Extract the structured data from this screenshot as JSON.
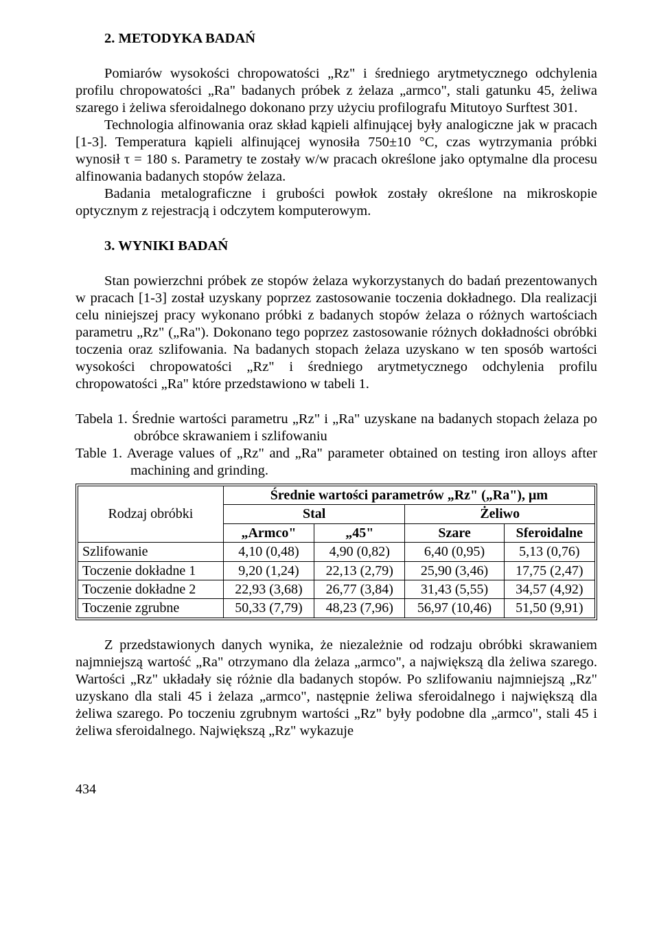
{
  "section2": {
    "title": "2.  METODYKA  BADAŃ",
    "p1": "Pomiarów wysokości chropowatości „Rz\" i średniego arytmetycznego odchylenia profilu chropowatości „Ra\" badanych próbek z żelaza „armco\", stali gatunku 45, żeliwa szarego i żeliwa sferoidalnego dokonano przy użyciu profilografu Mitutoyo Surftest 301.",
    "p2": "Technologia alfinowania oraz skład kąpieli alfinującej były analogiczne jak w pracach [1-3]. Temperatura kąpieli alfinującej wynosiła 750±10 °C, czas wytrzymania próbki wynosił τ = 180 s. Parametry te zostały w/w pracach określone jako optymalne dla procesu alfinowania badanych stopów żelaza.",
    "p3": "Badania metalograficzne i grubości powłok zostały określone na mikroskopie optycznym z rejestracją i odczytem komputerowym."
  },
  "section3": {
    "title": "3.   WYNIKI  BADAŃ",
    "p1": "Stan powierzchni próbek ze stopów żelaza  wykorzystanych do badań prezentowanych w pracach [1-3] został uzyskany poprzez zastosowanie toczenia dokładnego. Dla realizacji celu niniejszej pracy wykonano próbki z badanych stopów żelaza o różnych wartościach parametru „Rz\" („Ra\"). Dokonano tego poprzez zastosowanie różnych dokładności obróbki toczenia oraz szlifowania. Na badanych stopach żelaza uzyskano w ten sposób wartości wysokości chropowatości „Rz\" i średniego arytmetycznego odchylenia profilu chropowatości „Ra\" które przedstawiono w tabeli 1."
  },
  "tablecap": {
    "pl": "Tabela 1. Średnie wartości parametru „Rz\" i „Ra\" uzyskane na badanych stopach żelaza po obróbce skrawaniem i szlifowaniu",
    "en": "Table 1. Average values of „Rz\" and „Ra\" parameter obtained on testing iron alloys after machining and grinding."
  },
  "table": {
    "header_top": "Średnie wartości parametrów „Rz\" („Ra\"), μm",
    "rowlabel_head": "Rodzaj obróbki",
    "group_stal": "Stal",
    "group_zeliwo": "Żeliwo",
    "cols": {
      "armco": "„Armco\"",
      "s45": "„45\"",
      "szare": "Szare",
      "sfer": "Sferoidalne"
    },
    "rows": [
      {
        "label": "Szlifowanie",
        "armco": "4,10 (0,48)",
        "s45": "4,90 (0,82)",
        "szare": "6,40 (0,95)",
        "sfer": "5,13 (0,76)"
      },
      {
        "label": "Toczenie dokładne 1",
        "armco": "9,20 (1,24)",
        "s45": "22,13 (2,79)",
        "szare": "25,90 (3,46)",
        "sfer": "17,75 (2,47)"
      },
      {
        "label": "Toczenie dokładne 2",
        "armco": "22,93 (3,68)",
        "s45": "26,77 (3,84)",
        "szare": "31,43 (5,55)",
        "sfer": "34,57 (4,92)"
      },
      {
        "label": "Toczenie zgrubne",
        "armco": "50,33 (7,79)",
        "s45": "48,23 (7,96)",
        "szare": "56,97 (10,46)",
        "sfer": "51,50 (9,91)"
      }
    ]
  },
  "after": {
    "p1": "Z przedstawionych danych wynika, że niezależnie od rodzaju obróbki skrawaniem najmniejszą wartość „Ra\" otrzymano dla żelaza „armco\", a największą dla żeliwa szarego. Wartości „Rz\" układały się różnie dla badanych stopów. Po szlifowaniu najmniejszą „Rz\" uzyskano dla stali 45 i żelaza „armco\", następnie żeliwa sferoidalnego i największą dla żeliwa szarego. Po toczeniu zgrubnym wartości „Rz\" były podobne dla „armco\", stali 45 i żeliwa sferoidalnego. Największą „Rz\" wykazuje"
  },
  "pagenum": "434"
}
